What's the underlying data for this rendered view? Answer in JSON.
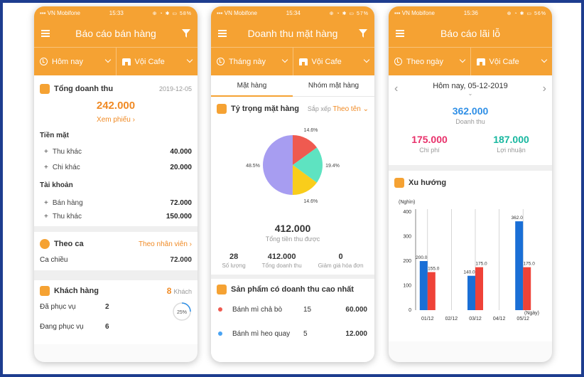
{
  "status_bar": {
    "carrier": "VN Mobifone",
    "icons": "⊕ ◔ ✱ ▭",
    "phone1": {
      "time": "15:33",
      "battery": "58%"
    },
    "phone2": {
      "time": "15:34",
      "battery": "57%"
    },
    "phone3": {
      "time": "15:36",
      "battery": "56%"
    }
  },
  "phone1": {
    "title": "Báo cáo bán hàng",
    "filter_time": "Hôm nay",
    "filter_store": "Vội Cafe",
    "total": {
      "label": "Tổng doanh thu",
      "date": "2019-12-05",
      "amount": "242.000",
      "link": "Xem phiếu ›"
    },
    "cash": {
      "label": "Tiền mặt",
      "rows": [
        {
          "label": "Thu khác",
          "value": "40.000"
        },
        {
          "label": "Chi khác",
          "value": "20.000"
        }
      ]
    },
    "account": {
      "label": "Tài khoản",
      "rows": [
        {
          "label": "Bán hàng",
          "value": "72.000"
        },
        {
          "label": "Thu khác",
          "value": "150.000"
        }
      ]
    },
    "shift": {
      "label": "Theo ca",
      "link": "Theo nhân viên ›",
      "row_label": "Ca chiều",
      "row_value": "72.000"
    },
    "customers": {
      "label": "Khách hàng",
      "count": "8",
      "count_unit": "Khách",
      "served_label": "Đã phục vụ",
      "served_value": "2",
      "serving_label": "Đang phục vụ",
      "serving_value": "6",
      "progress_text": "25%",
      "progress": 0.25
    }
  },
  "phone2": {
    "title": "Doanh thu mặt hàng",
    "filter_time": "Tháng này",
    "filter_store": "Vội Cafe",
    "tabs": [
      "Mặt hàng",
      "Nhóm mặt hàng"
    ],
    "share": {
      "label": "Tỷ trọng mặt hàng",
      "sort_label": "Sắp xếp",
      "sort_value": "Theo tên ⌄"
    },
    "chart_data": {
      "type": "pie",
      "slices": [
        {
          "value": 14.6,
          "label": "14.6%",
          "color": "#ef5a50"
        },
        {
          "value": 19.4,
          "label": "19.4%",
          "color": "#5ee3c1"
        },
        {
          "value": 14.6,
          "label": "14.6%",
          "color": "#f9cd1b"
        },
        {
          "value": 48.5,
          "label": "48.5%",
          "color": "#a79df1"
        }
      ]
    },
    "total_amount": "412.000",
    "total_label": "Tổng tiền thu được",
    "stats": [
      {
        "value": "28",
        "label": "Số lượng"
      },
      {
        "value": "412.000",
        "label": "Tổng doanh thu"
      },
      {
        "value": "0",
        "label": "Giảm giá hóa đơn"
      }
    ],
    "top_label": "Sản phẩm có doanh thu cao nhất",
    "top_products": [
      {
        "name": "Bánh mì chả bò",
        "qty": "15",
        "amount": "60.000",
        "color": "#ef5a50"
      },
      {
        "name": "Bánh mì heo quay",
        "qty": "5",
        "amount": "12.000",
        "color": "#4aa3f2"
      }
    ]
  },
  "phone3": {
    "title": "Báo cáo lãi lỗ",
    "filter_time": "Theo ngày",
    "filter_store": "Vội Cafe",
    "date_label": "Hôm nay, 05-12-2019",
    "revenue": {
      "value": "362.000",
      "label": "Doanh thu"
    },
    "cost": {
      "value": "175.000",
      "label": "Chi phí"
    },
    "profit": {
      "value": "187.000",
      "label": "Lợi nhuận"
    },
    "trend_label": "Xu hướng",
    "chart_data": {
      "type": "bar",
      "ylabel": "(Nghìn)",
      "xlabel": "(Ngày)",
      "categories": [
        "01/12",
        "02/12",
        "03/12",
        "04/12",
        "05/12"
      ],
      "yticks": [
        0,
        100,
        200,
        300,
        400
      ],
      "ylim": [
        0,
        400
      ],
      "series": [
        {
          "values": [
            200,
            0,
            140,
            0,
            362
          ],
          "labels": [
            "200.0",
            "",
            "140.0",
            "",
            "362.0"
          ],
          "color": "#1a6fd6"
        },
        {
          "values": [
            155,
            0,
            175,
            0,
            175
          ],
          "labels": [
            "155.0",
            "",
            "175.0",
            "",
            "175.0"
          ],
          "color": "#ef4238"
        }
      ]
    }
  },
  "colors": {
    "brand": "#f5a233",
    "revenue": "#2f8fe6",
    "cost": "#e8306a",
    "profit": "#17b79f"
  }
}
